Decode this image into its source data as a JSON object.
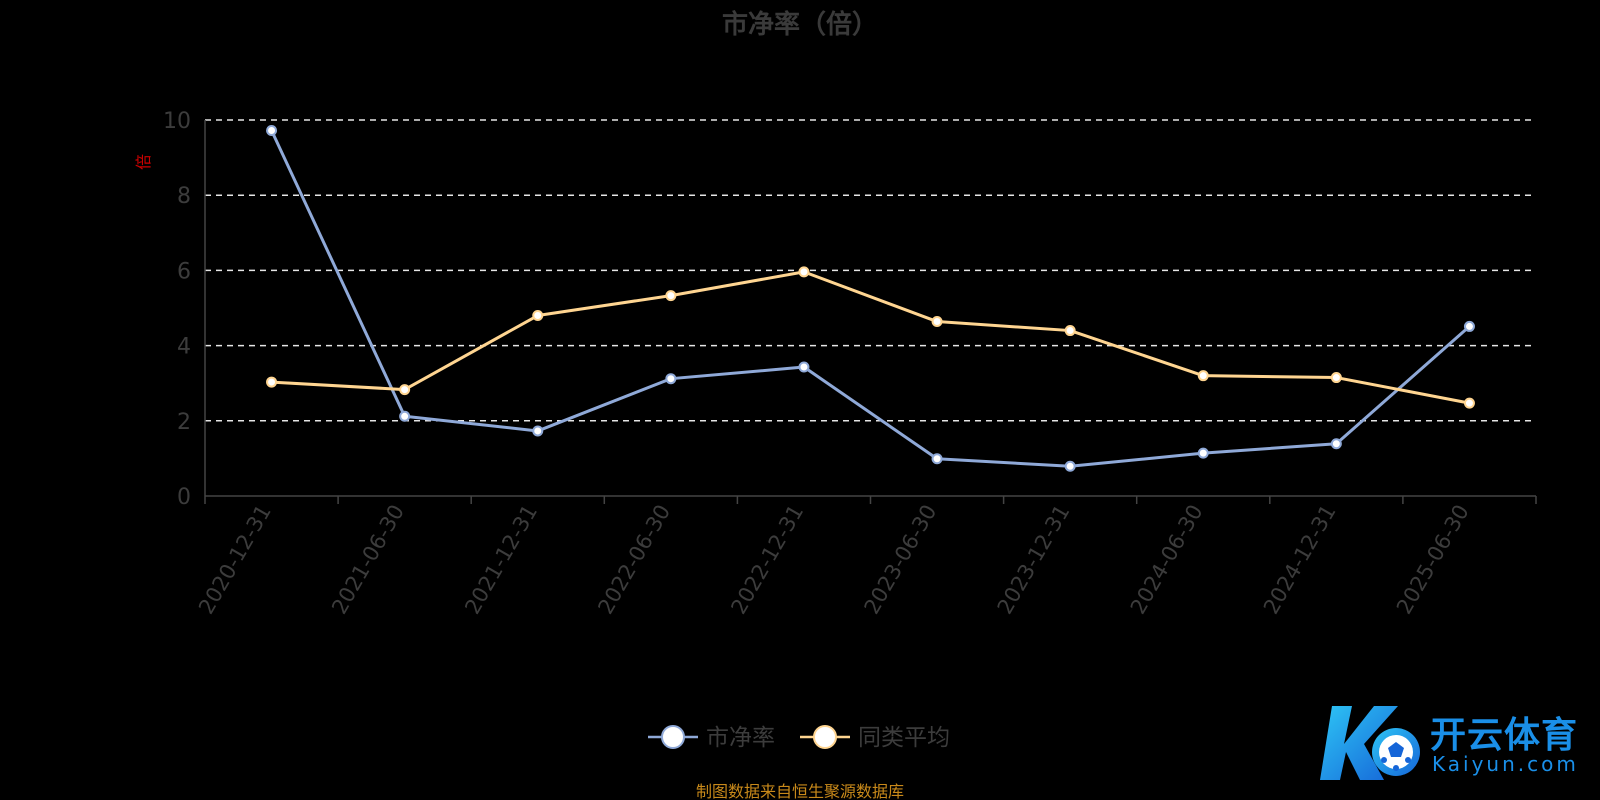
{
  "chart_data": {
    "type": "line",
    "title": "市净率（倍）",
    "ylabel": "倍",
    "ylim": [
      0,
      10
    ],
    "yticks": [
      0,
      2,
      4,
      6,
      8,
      10
    ],
    "grid": true,
    "legend_position": "bottom",
    "categories": [
      "2020-12-31",
      "2021-06-30",
      "2021-12-31",
      "2022-06-30",
      "2022-12-31",
      "2023-06-30",
      "2023-12-31",
      "2024-06-30",
      "2024-12-31",
      "2025-06-30"
    ],
    "series": [
      {
        "name": "市净率",
        "color": "#8fa9d8",
        "values": [
          9.72,
          2.12,
          1.73,
          3.12,
          3.43,
          0.99,
          0.79,
          1.14,
          1.39,
          4.51
        ]
      },
      {
        "name": "同类平均",
        "color": "#ffd591",
        "values": [
          3.03,
          2.83,
          4.8,
          5.33,
          5.96,
          4.64,
          4.4,
          3.2,
          3.15,
          2.47
        ]
      }
    ]
  },
  "source_note": "制图数据来自恒生聚源数据库",
  "watermark": {
    "brand_cn": "开云体育",
    "brand_en": "Kaiyun.com"
  }
}
